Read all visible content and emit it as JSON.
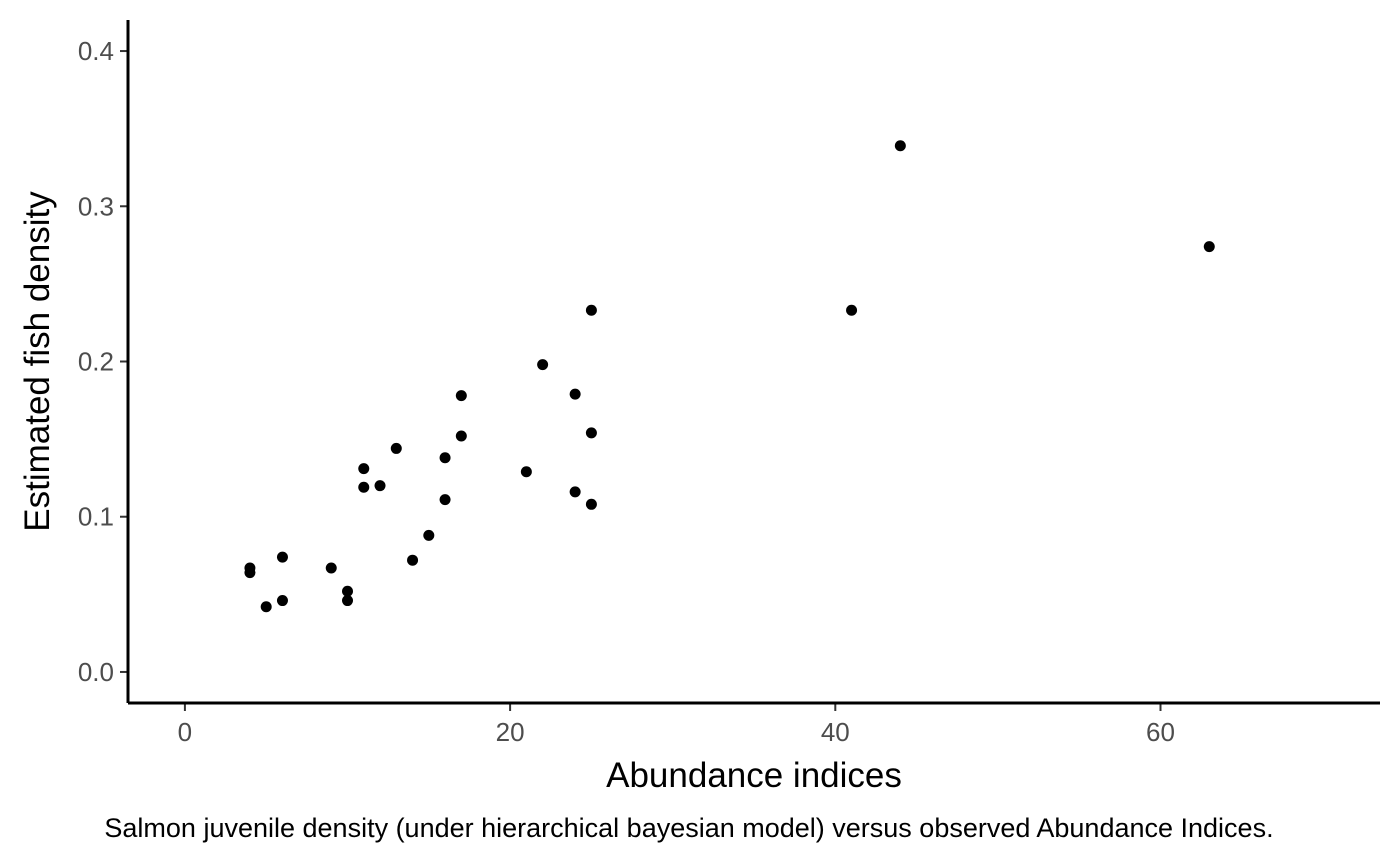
{
  "chart_data": {
    "type": "scatter",
    "title": "",
    "xlabel": "Abundance indices",
    "ylabel": "Estimated fish density",
    "caption": "Salmon juvenile density (under hierarchical bayesian model) versus observed Abundance Indices.",
    "xlim": [
      -3.5,
      73.5
    ],
    "ylim": [
      -0.02,
      0.42
    ],
    "x_ticks": [
      0,
      20,
      40,
      60
    ],
    "x_tick_labels": [
      "0",
      "20",
      "40",
      "60"
    ],
    "y_ticks": [
      0.0,
      0.1,
      0.2,
      0.3,
      0.4
    ],
    "y_tick_labels": [
      "0.0",
      "0.1",
      "0.2",
      "0.3",
      "0.4"
    ],
    "grid": false,
    "legend": "none",
    "point_color": "#000000",
    "points": [
      {
        "x": 4,
        "y": 0.067
      },
      {
        "x": 4,
        "y": 0.064
      },
      {
        "x": 5,
        "y": 0.042
      },
      {
        "x": 6,
        "y": 0.074
      },
      {
        "x": 6,
        "y": 0.046
      },
      {
        "x": 9,
        "y": 0.067
      },
      {
        "x": 10,
        "y": 0.052
      },
      {
        "x": 10,
        "y": 0.046
      },
      {
        "x": 11,
        "y": 0.131
      },
      {
        "x": 11,
        "y": 0.119
      },
      {
        "x": 12,
        "y": 0.12
      },
      {
        "x": 13,
        "y": 0.144
      },
      {
        "x": 14,
        "y": 0.072
      },
      {
        "x": 15,
        "y": 0.088
      },
      {
        "x": 16,
        "y": 0.138
      },
      {
        "x": 16,
        "y": 0.111
      },
      {
        "x": 17,
        "y": 0.178
      },
      {
        "x": 17,
        "y": 0.152
      },
      {
        "x": 21,
        "y": 0.129
      },
      {
        "x": 22,
        "y": 0.198
      },
      {
        "x": 24,
        "y": 0.179
      },
      {
        "x": 24,
        "y": 0.116
      },
      {
        "x": 25,
        "y": 0.233
      },
      {
        "x": 25,
        "y": 0.154
      },
      {
        "x": 25,
        "y": 0.108
      },
      {
        "x": 41,
        "y": 0.233
      },
      {
        "x": 44,
        "y": 0.339
      },
      {
        "x": 63,
        "y": 0.274
      }
    ]
  }
}
